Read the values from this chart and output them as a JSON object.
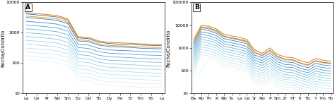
{
  "panel_A": {
    "label": "A",
    "elements": [
      "La",
      "Ce",
      "Pr",
      "Nd",
      "Sm",
      "Eu",
      "Gd",
      "Tb",
      "Dy",
      "Ho",
      "Er",
      "Tm",
      "Yb",
      "Lu"
    ],
    "ylabel": "Rocha/Condrito",
    "ylim_log": [
      10,
      10000
    ],
    "yticks": [
      10,
      100,
      1000,
      10000
    ],
    "blue_profiles": [
      [
        4200,
        3900,
        3600,
        3300,
        2600,
        680,
        640,
        490,
        440,
        425,
        415,
        395,
        385,
        380
      ],
      [
        3200,
        3000,
        2800,
        2550,
        2000,
        540,
        510,
        390,
        350,
        340,
        330,
        310,
        302,
        298
      ],
      [
        2400,
        2250,
        2100,
        1920,
        1520,
        420,
        395,
        305,
        272,
        263,
        255,
        241,
        234,
        231
      ],
      [
        1800,
        1700,
        1580,
        1450,
        1145,
        325,
        306,
        237,
        212,
        205,
        199,
        188,
        183,
        180
      ],
      [
        1350,
        1270,
        1185,
        1085,
        860,
        248,
        233,
        181,
        162,
        157,
        152,
        144,
        140,
        138
      ],
      [
        1010,
        950,
        890,
        815,
        645,
        190,
        179,
        139,
        125,
        121,
        117,
        111,
        108,
        106
      ],
      [
        755,
        710,
        665,
        610,
        484,
        145,
        137,
        106,
        96,
        92,
        89,
        85,
        82,
        81
      ],
      [
        565,
        530,
        498,
        456,
        362,
        111,
        105,
        81,
        73,
        70,
        68,
        64,
        63,
        62
      ],
      [
        420,
        395,
        372,
        341,
        271,
        85,
        80,
        62,
        56,
        54,
        52,
        49,
        48,
        47
      ],
      [
        314,
        295,
        278,
        255,
        203,
        65,
        61,
        47,
        43,
        41,
        40,
        38,
        37,
        36
      ],
      [
        234,
        220,
        207,
        190,
        152,
        49,
        46,
        36,
        32,
        31,
        30,
        29,
        28,
        27
      ],
      [
        175,
        164,
        154,
        142,
        113,
        37,
        35,
        27,
        24,
        24,
        23,
        22,
        21,
        21
      ],
      [
        130,
        122,
        115,
        106,
        84,
        28,
        26,
        20,
        18,
        18,
        17,
        16,
        16,
        16
      ]
    ],
    "orange_profiles": [
      [
        4600,
        4300,
        4000,
        3650,
        2880,
        740,
        700,
        535,
        480,
        465,
        453,
        430,
        418,
        412
      ],
      [
        3550,
        3320,
        3090,
        2820,
        2230,
        590,
        556,
        427,
        383,
        370,
        360,
        342,
        332,
        328
      ]
    ],
    "blue_shades": [
      "#1a5fa8",
      "#2470b8",
      "#3082c0",
      "#4494c8",
      "#5aa5d0",
      "#6eb5d8",
      "#82c3de",
      "#97d0e4",
      "#a8d8e8",
      "#b8e0ec",
      "#c8e8f0",
      "#d5edf3",
      "#e0f2f6"
    ],
    "orange_shades": [
      "#e8820a",
      "#f5a030"
    ]
  },
  "panel_B": {
    "label": "B",
    "elements": [
      "Ba",
      "Rb",
      "Th",
      "K",
      "Nb",
      "Ta",
      "La",
      "Ce",
      "Sr",
      "Nd",
      "P",
      "Sm",
      "Zr",
      "Hf",
      "Ti",
      "Tb",
      "Y",
      "Tm",
      "Yb"
    ],
    "ylabel": "Rocha/Condrito",
    "ylim_log": [
      10,
      100000
    ],
    "yticks": [
      10,
      100,
      1000,
      10000,
      100000
    ],
    "blue_profiles": [
      [
        1800,
        8500,
        7500,
        5800,
        3300,
        2800,
        2400,
        1950,
        650,
        480,
        800,
        430,
        320,
        305,
        220,
        180,
        280,
        235,
        215
      ],
      [
        1350,
        6600,
        5800,
        4400,
        2560,
        2170,
        1850,
        1500,
        490,
        365,
        605,
        325,
        243,
        230,
        167,
        137,
        212,
        178,
        163
      ],
      [
        1010,
        5100,
        4490,
        3400,
        1985,
        1680,
        1430,
        1160,
        380,
        282,
        465,
        251,
        188,
        178,
        129,
        106,
        164,
        137,
        126
      ],
      [
        755,
        3950,
        3475,
        2635,
        1540,
        1302,
        1110,
        898,
        294,
        218,
        360,
        194,
        146,
        138,
        100,
        82,
        127,
        106,
        97
      ],
      [
        565,
        3060,
        2695,
        2045,
        1195,
        1010,
        860,
        696,
        228,
        169,
        279,
        150,
        113,
        107,
        78,
        63,
        98,
        82,
        75
      ],
      [
        422,
        2370,
        2090,
        1585,
        926,
        783,
        667,
        540,
        177,
        131,
        216,
        117,
        88,
        83,
        61,
        49,
        76,
        63,
        58
      ],
      [
        315,
        1835,
        1620,
        1230,
        717,
        607,
        517,
        419,
        137,
        101,
        167,
        90,
        68,
        64,
        47,
        38,
        59,
        49,
        45
      ],
      [
        235,
        1420,
        1255,
        953,
        556,
        470,
        400,
        324,
        106,
        78,
        130,
        70,
        53,
        50,
        37,
        30,
        46,
        38,
        35
      ],
      [
        176,
        1100,
        973,
        739,
        431,
        364,
        310,
        251,
        82,
        61,
        100,
        54,
        41,
        39,
        28,
        23,
        35,
        29,
        27
      ],
      [
        131,
        852,
        754,
        572,
        334,
        282,
        240,
        195,
        64,
        47,
        78,
        42,
        32,
        30,
        22,
        18,
        27,
        23,
        21
      ],
      [
        98,
        660,
        584,
        443,
        259,
        219,
        186,
        151,
        49,
        37,
        60,
        32,
        25,
        23,
        17,
        14,
        21,
        17,
        16
      ],
      [
        73,
        511,
        452,
        343,
        200,
        170,
        144,
        117,
        38,
        28,
        47,
        25,
        19,
        18,
        13,
        11,
        16,
        13,
        12
      ],
      [
        55,
        100,
        350,
        265,
        155,
        131,
        112,
        90,
        30,
        22,
        36,
        19,
        15,
        14,
        10,
        8,
        12,
        10,
        10
      ]
    ],
    "orange_profiles": [
      [
        2300,
        9800,
        9000,
        6800,
        4000,
        3400,
        2900,
        2350,
        820,
        580,
        1000,
        520,
        400,
        378,
        275,
        226,
        345,
        288,
        264
      ],
      [
        1700,
        7600,
        6850,
        5190,
        3065,
        2592,
        2215,
        1798,
        627,
        446,
        762,
        396,
        303,
        287,
        209,
        172,
        263,
        220,
        202
      ]
    ],
    "blue_shades": [
      "#1a5fa8",
      "#2470b8",
      "#3082c0",
      "#4494c8",
      "#5aa5d0",
      "#6eb5d8",
      "#82c3de",
      "#97d0e4",
      "#a8d8e8",
      "#b8e0ec",
      "#c8e8f0",
      "#d5edf3",
      "#e0f2f6"
    ],
    "orange_shades": [
      "#e8820a",
      "#f5a030"
    ]
  }
}
